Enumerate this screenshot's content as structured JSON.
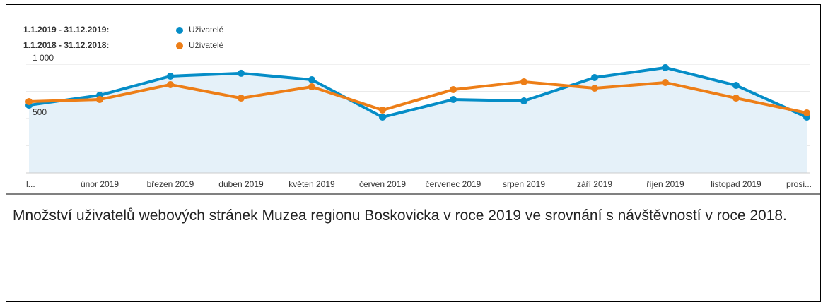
{
  "chart_data": {
    "type": "line",
    "legend": [
      {
        "label": "1.1.2019 - 31.12.2019:",
        "series_name": "Uživatelé"
      },
      {
        "label": "1.1.2018 - 31.12.2018:",
        "series_name": "Uživatelé"
      }
    ],
    "categories": [
      "l...",
      "únor 2019",
      "březen 2019",
      "duben 2019",
      "květen 2019",
      "červen 2019",
      "červenec 2019",
      "srpen 2019",
      "září 2019",
      "říjen 2019",
      "listopad 2019",
      "prosi..."
    ],
    "series": [
      {
        "name": "Uživatelé",
        "color": "#058dc7",
        "area": true,
        "values": [
          623,
          714,
          890,
          916,
          857,
          513,
          675,
          662,
          877,
          968,
          805,
          513
        ]
      },
      {
        "name": "Uživatelé",
        "color": "#ed7e17",
        "values": [
          656,
          675,
          812,
          688,
          792,
          578,
          766,
          838,
          779,
          831,
          688,
          552
        ]
      }
    ],
    "ylim": [
      0,
      1000
    ],
    "yticks": [
      {
        "value": 1000,
        "label": "1 000"
      },
      500
    ],
    "minor_yticks": [
      250,
      750
    ],
    "grid": true,
    "caption": "Množství uživatelů webových stránek Muzea regionu Boskovicka v roce 2019 ve srovnání s návštěvností v roce 2018."
  }
}
